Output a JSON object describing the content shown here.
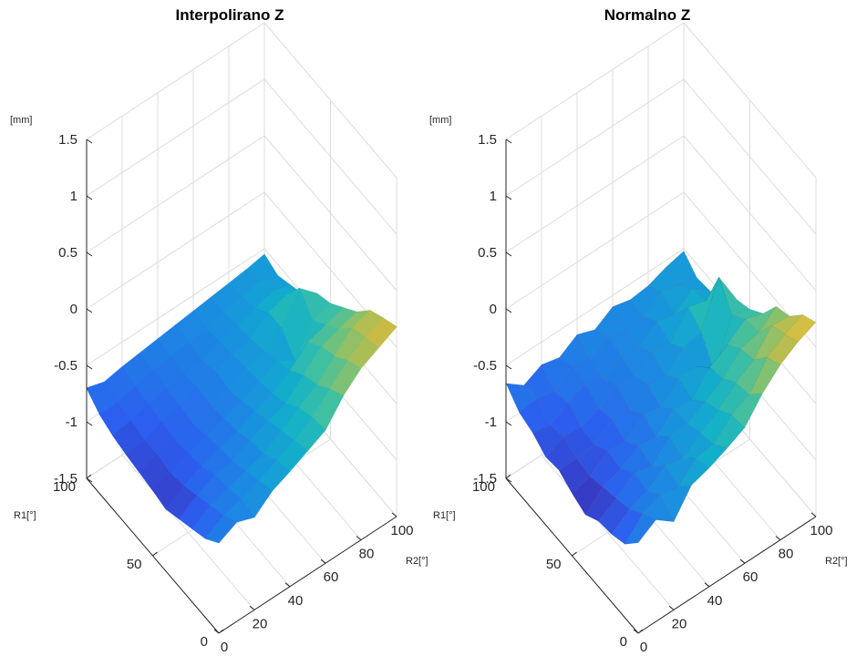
{
  "chart_data": [
    {
      "type": "surface",
      "title": "Interpolirano Z",
      "zlabel": "[mm]",
      "xlabel": "R2[°]",
      "ylabel": "R1[°]",
      "zlim": [
        -1.5,
        1.5
      ],
      "xlim": [
        0,
        100
      ],
      "ylim": [
        0,
        100
      ],
      "z_ticks": [
        "1.5",
        "1",
        "0.5",
        "0",
        "-0.5",
        "-1",
        "-1.5"
      ],
      "x_ticks": [
        "0",
        "20",
        "40",
        "60",
        "80",
        "100"
      ],
      "y_ticks": [
        "0",
        "50",
        "100"
      ],
      "shading": "interp",
      "grid": true,
      "colormap": [
        "#3d26a8",
        "#2c5ff0",
        "#1a8fe0",
        "#12b1c9",
        "#3dbfa4",
        "#84c16f",
        "#c9bb45",
        "#f9d23a"
      ],
      "x": [
        0,
        10,
        20,
        30,
        40,
        50,
        60,
        70,
        80,
        90,
        100
      ],
      "y": [
        0,
        10,
        20,
        30,
        40,
        50,
        60,
        70,
        80,
        90,
        100
      ],
      "z": [
        [
          -0.7,
          -0.62,
          -0.68,
          -0.55,
          -0.48,
          -0.4,
          -0.32,
          -0.12,
          0.02,
          0.1,
          0.18
        ],
        [
          -0.8,
          -0.7,
          -0.66,
          -0.6,
          -0.52,
          -0.45,
          -0.35,
          -0.2,
          -0.05,
          0.05,
          0.12
        ],
        [
          -0.85,
          -0.75,
          -0.7,
          -0.65,
          -0.6,
          -0.5,
          -0.4,
          -0.3,
          -0.15,
          0.0,
          0.05
        ],
        [
          -0.9,
          -0.8,
          -0.72,
          -0.7,
          -0.62,
          -0.55,
          -0.5,
          -0.35,
          -0.2,
          -0.15,
          -0.1
        ],
        [
          -0.95,
          -0.85,
          -0.78,
          -0.72,
          -0.68,
          -0.6,
          -0.55,
          -0.45,
          -0.3,
          -0.25,
          -0.2
        ],
        [
          -0.92,
          -0.88,
          -0.8,
          -0.75,
          -0.7,
          -0.65,
          -0.58,
          -0.5,
          -0.6,
          -0.35,
          -0.3
        ],
        [
          -0.9,
          -0.85,
          -0.82,
          -0.78,
          -0.72,
          -0.68,
          -0.6,
          -0.55,
          -0.45,
          -0.2,
          -0.35
        ],
        [
          -0.88,
          -0.86,
          -0.8,
          -0.76,
          -0.7,
          -0.66,
          -0.62,
          -0.58,
          -0.45,
          -0.4,
          -0.5
        ],
        [
          -0.85,
          -0.82,
          -0.78,
          -0.74,
          -0.72,
          -0.7,
          -0.64,
          -0.6,
          -0.55,
          -0.5,
          -0.55
        ],
        [
          -0.8,
          -0.8,
          -0.76,
          -0.72,
          -0.7,
          -0.68,
          -0.66,
          -0.62,
          -0.58,
          -0.55,
          -0.6
        ],
        [
          -0.7,
          -0.75,
          -0.72,
          -0.7,
          -0.68,
          -0.66,
          -0.64,
          -0.62,
          -0.6,
          -0.58,
          -0.55
        ]
      ]
    },
    {
      "type": "surface",
      "title": "Normalno Z",
      "zlabel": "[mm]",
      "xlabel": "R2[°]",
      "ylabel": "R1[°]",
      "zlim": [
        -1.5,
        1.5
      ],
      "xlim": [
        0,
        100
      ],
      "ylim": [
        0,
        100
      ],
      "z_ticks": [
        "1.5",
        "1",
        "0.5",
        "0",
        "-0.5",
        "-1",
        "-1.5"
      ],
      "x_ticks": [
        "0",
        "20",
        "40",
        "60",
        "80",
        "100"
      ],
      "y_ticks": [
        "0",
        "50",
        "100"
      ],
      "shading": "faceted-flat",
      "grid": true,
      "colormap": [
        "#3d26a8",
        "#2c5ff0",
        "#1a8fe0",
        "#12b1c9",
        "#3dbfa4",
        "#84c16f",
        "#c9bb45",
        "#f9d23a"
      ],
      "x": [
        0,
        10,
        20,
        30,
        40,
        50,
        60,
        70,
        80,
        90,
        100
      ],
      "y": [
        0,
        10,
        20,
        30,
        40,
        50,
        60,
        70,
        80,
        90,
        100
      ],
      "z": [
        [
          -0.7,
          -0.6,
          -0.72,
          -0.5,
          -0.45,
          -0.38,
          -0.3,
          -0.1,
          0.05,
          0.15,
          0.22
        ],
        [
          -0.85,
          -0.68,
          -0.62,
          -0.65,
          -0.5,
          -0.48,
          -0.32,
          -0.25,
          -0.02,
          0.08,
          0.15
        ],
        [
          -0.9,
          -0.78,
          -0.72,
          -0.6,
          -0.64,
          -0.52,
          -0.42,
          -0.28,
          -0.18,
          0.02,
          0.0
        ],
        [
          -0.92,
          -0.82,
          -0.7,
          -0.74,
          -0.58,
          -0.57,
          -0.48,
          -0.38,
          -0.22,
          -0.18,
          -0.05
        ],
        [
          -1.0,
          -0.86,
          -0.8,
          -0.7,
          -0.72,
          -0.58,
          -0.6,
          -0.42,
          -0.32,
          -0.2,
          -0.25
        ],
        [
          -0.95,
          -0.9,
          -0.78,
          -0.8,
          -0.66,
          -0.7,
          -0.55,
          -0.55,
          -0.7,
          -0.3,
          -0.35
        ],
        [
          -0.88,
          -0.88,
          -0.86,
          -0.74,
          -0.76,
          -0.64,
          -0.66,
          -0.52,
          -0.48,
          -0.1,
          -0.4
        ],
        [
          -0.9,
          -0.82,
          -0.84,
          -0.78,
          -0.68,
          -0.7,
          -0.6,
          -0.62,
          -0.4,
          -0.45,
          -0.55
        ],
        [
          -0.82,
          -0.86,
          -0.76,
          -0.7,
          -0.76,
          -0.66,
          -0.68,
          -0.56,
          -0.6,
          -0.48,
          -0.6
        ],
        [
          -0.78,
          -0.76,
          -0.8,
          -0.68,
          -0.72,
          -0.62,
          -0.7,
          -0.66,
          -0.54,
          -0.58,
          -0.62
        ],
        [
          -0.66,
          -0.78,
          -0.7,
          -0.74,
          -0.64,
          -0.7,
          -0.6,
          -0.64,
          -0.62,
          -0.56,
          -0.52
        ]
      ]
    }
  ]
}
